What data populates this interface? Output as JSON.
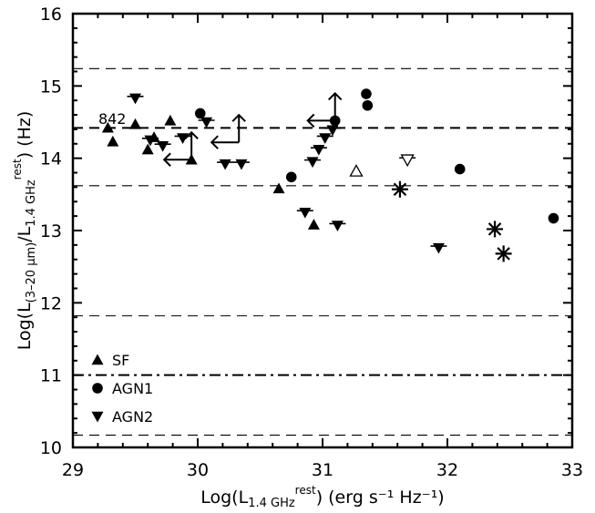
{
  "chart_data": {
    "type": "scatter",
    "xlim": [
      29,
      33
    ],
    "ylim": [
      10,
      16
    ],
    "xticks": [
      "29",
      "30",
      "31",
      "32",
      "33"
    ],
    "yticks": [
      "10",
      "11",
      "12",
      "13",
      "14",
      "15",
      "16"
    ],
    "xlabel": {
      "main": "Log(L",
      "sub": "1.4 GHz",
      "sup": "rest",
      "tail": ") (erg s⁻¹ Hz⁻¹)"
    },
    "ylabel": {
      "p1": "Log(L",
      "sub1": "(3–20 μm)",
      "p2": "/L",
      "sub2": "1.4 GHz",
      "sup2": "rest",
      "p3": ") (Hz)"
    },
    "annotation": {
      "text": "842",
      "x": 29.35,
      "y": 14.55
    },
    "hlines": [
      {
        "y": 15.24,
        "style": "dashed",
        "weight": "thin"
      },
      {
        "y": 14.42,
        "style": "dashed",
        "weight": "thick"
      },
      {
        "y": 13.62,
        "style": "dashed",
        "weight": "thin"
      },
      {
        "y": 11.82,
        "style": "dashed",
        "weight": "thin"
      },
      {
        "y": 11.0,
        "style": "dashdot",
        "weight": "thick"
      },
      {
        "y": 10.17,
        "style": "dashed",
        "weight": "thin"
      }
    ],
    "legend": [
      {
        "marker": "triangle-up",
        "label": "SF"
      },
      {
        "marker": "circle",
        "label": "AGN1"
      },
      {
        "marker": "triangle-down",
        "label": "AGN2"
      }
    ],
    "series": [
      {
        "name": "SF",
        "marker": "triangle-up",
        "points": [
          {
            "x": 29.28,
            "y": 14.42
          },
          {
            "x": 29.32,
            "y": 14.23
          },
          {
            "x": 29.5,
            "y": 14.47
          },
          {
            "x": 29.6,
            "y": 14.12
          },
          {
            "x": 29.65,
            "y": 14.29
          },
          {
            "x": 29.78,
            "y": 14.52
          },
          {
            "x": 29.95,
            "y": 13.98
          },
          {
            "x": 30.65,
            "y": 13.58
          },
          {
            "x": 30.93,
            "y": 13.08
          }
        ]
      },
      {
        "name": "SF (open)",
        "marker": "triangle-up-open",
        "points": [
          {
            "x": 31.27,
            "y": 13.82
          }
        ]
      },
      {
        "name": "AGN1",
        "marker": "circle",
        "points": [
          {
            "x": 30.02,
            "y": 14.62
          },
          {
            "x": 30.75,
            "y": 13.74
          },
          {
            "x": 31.1,
            "y": 14.52
          },
          {
            "x": 31.35,
            "y": 14.89
          },
          {
            "x": 31.36,
            "y": 14.73
          },
          {
            "x": 32.1,
            "y": 13.85
          },
          {
            "x": 32.85,
            "y": 13.17
          }
        ]
      },
      {
        "name": "AGN2",
        "marker": "triangle-down",
        "points": [
          {
            "x": 29.5,
            "y": 14.83
          },
          {
            "x": 29.62,
            "y": 14.25
          },
          {
            "x": 29.72,
            "y": 14.17
          },
          {
            "x": 29.88,
            "y": 14.28
          },
          {
            "x": 30.07,
            "y": 14.5
          },
          {
            "x": 30.22,
            "y": 13.92
          },
          {
            "x": 30.35,
            "y": 13.92
          },
          {
            "x": 30.86,
            "y": 13.25
          },
          {
            "x": 30.92,
            "y": 13.95
          },
          {
            "x": 30.97,
            "y": 14.12
          },
          {
            "x": 31.02,
            "y": 14.28
          },
          {
            "x": 31.08,
            "y": 14.39
          },
          {
            "x": 31.12,
            "y": 13.07
          },
          {
            "x": 31.93,
            "y": 12.76
          }
        ]
      },
      {
        "name": "AGN2 (open)",
        "marker": "triangle-down-open",
        "points": [
          {
            "x": 31.68,
            "y": 13.98
          }
        ]
      },
      {
        "name": "Asterisk",
        "marker": "asterisk",
        "points": [
          {
            "x": 31.62,
            "y": 13.57
          },
          {
            "x": 32.38,
            "y": 13.02
          },
          {
            "x": 32.45,
            "y": 12.68
          }
        ]
      },
      {
        "name": "Limits",
        "marker": "limit-arrow",
        "points": [
          {
            "x": 29.95,
            "y": 13.98,
            "arrows": [
              "left",
              "up"
            ]
          },
          {
            "x": 30.33,
            "y": 14.22,
            "arrows": [
              "left",
              "up"
            ]
          },
          {
            "x": 31.1,
            "y": 14.52,
            "arrows": [
              "left",
              "up"
            ]
          }
        ]
      }
    ]
  }
}
